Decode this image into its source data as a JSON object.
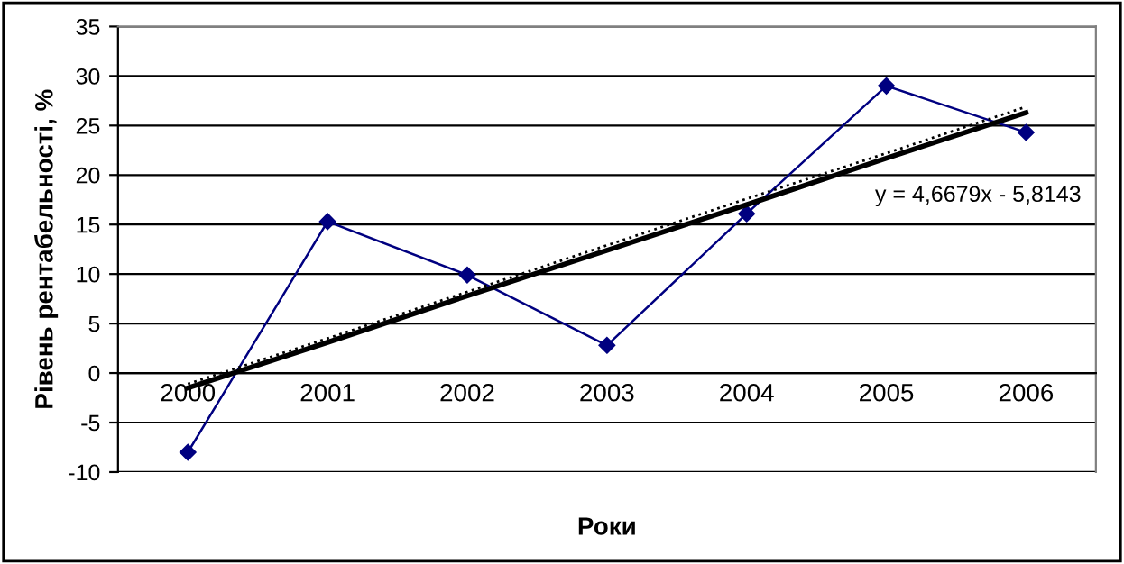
{
  "chart_data": {
    "type": "line",
    "xlabel": "Роки",
    "ylabel": "Рівень рентабельності, %",
    "categories": [
      "2000",
      "2001",
      "2002",
      "2003",
      "2004",
      "2005",
      "2006"
    ],
    "series": [
      {
        "color": "#000080",
        "values": [
          -8,
          15.3,
          9.9,
          2.8,
          16.1,
          29,
          24.3
        ],
        "marker": "diamond",
        "line_style": "solid"
      },
      {
        "type": "line",
        "color": "#000000",
        "values": [
          -1.5,
          3.1,
          7.8,
          12.4,
          17.0,
          21.7,
          26.3
        ],
        "marker": "none",
        "line_style": "solid"
      },
      {
        "type": "line",
        "color": "#000000",
        "values": [
          -1.1,
          3.5,
          8.2,
          12.9,
          17.6,
          22.2,
          26.9
        ],
        "marker": "none",
        "line_style": "dotted"
      }
    ],
    "annotations": [
      "y = 4,6679x - 5,8143"
    ],
    "ylim": [
      -10,
      35
    ],
    "yticks": [
      -10,
      -5,
      0,
      5,
      10,
      15,
      20,
      25,
      30,
      35
    ],
    "grid": "y",
    "legend": false
  }
}
